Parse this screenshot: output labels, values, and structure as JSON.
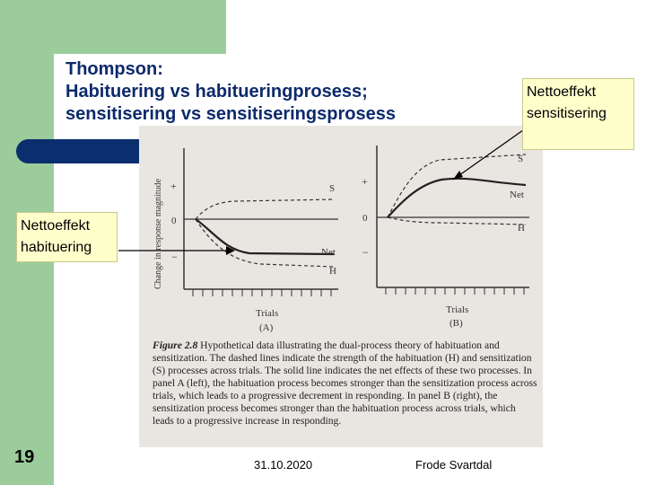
{
  "slide": {
    "title": "Thompson:\nHabituering vs habitueringprosess;\nsensitisering vs sensitiseringsprosess",
    "number": "19",
    "date": "31.10.2020",
    "author": "Frode Svartdal"
  },
  "callouts": {
    "sensitization": "Nettoeffekt sensitisering",
    "habituation": "Nettoeffekt habituering"
  },
  "figure": {
    "y_axis_label": "Change in response magnitude",
    "plus": "+",
    "zero": "0",
    "minus": "−",
    "panel_a": {
      "x_label": "Trials",
      "panel_label": "(A)",
      "s_label": "S",
      "net_label": "Net",
      "h_label": "H"
    },
    "panel_b": {
      "x_label": "Trials",
      "panel_label": "(B)",
      "s_label": "S",
      "net_label": "Net",
      "h_label": "H"
    },
    "caption_label": "Figure 2.8",
    "caption_text": "Hypothetical data illustrating the dual-process theory of habituation and sensitization. The dashed lines indicate the strength of the habituation (H) and sensitization (S) processes across trials. The solid line indicates the net effects of these two processes. In panel A (left), the habituation process becomes stronger than the sensitization process across trials, which leads to a progressive decrement in responding. In panel B (right), the sensitization process becomes stronger than the habituation process across trials, which leads to a progressive increase in responding."
  }
}
